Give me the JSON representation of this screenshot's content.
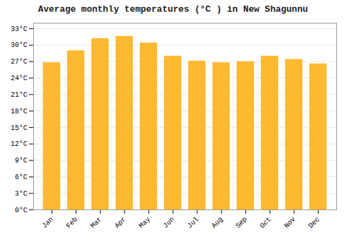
{
  "chart_data": {
    "type": "bar",
    "title": "Average monthly temperatures (°C ) in New Shagunnu",
    "categories": [
      "Jan",
      "Feb",
      "Mar",
      "Apr",
      "May",
      "Jun",
      "Jul",
      "Aug",
      "Sep",
      "Oct",
      "Nov",
      "Dec"
    ],
    "values": [
      26.8,
      29.0,
      31.2,
      31.6,
      30.4,
      28.0,
      27.1,
      26.8,
      27.0,
      28.0,
      27.4,
      26.6
    ],
    "color": "#FDB931",
    "ylim": [
      0,
      34
    ],
    "yticks": [
      {
        "value": 0,
        "label": "0°C"
      },
      {
        "value": 3,
        "label": "3°C"
      },
      {
        "value": 6,
        "label": "6°C"
      },
      {
        "value": 9,
        "label": "9°C"
      },
      {
        "value": 12,
        "label": "12°C"
      },
      {
        "value": 15,
        "label": "15°C"
      },
      {
        "value": 18,
        "label": "18°C"
      },
      {
        "value": 21,
        "label": "21°C"
      },
      {
        "value": 24,
        "label": "24°C"
      },
      {
        "value": 27,
        "label": "27°C"
      },
      {
        "value": 30,
        "label": "30°C"
      },
      {
        "value": 33,
        "label": "33°C"
      }
    ],
    "grid": true
  }
}
